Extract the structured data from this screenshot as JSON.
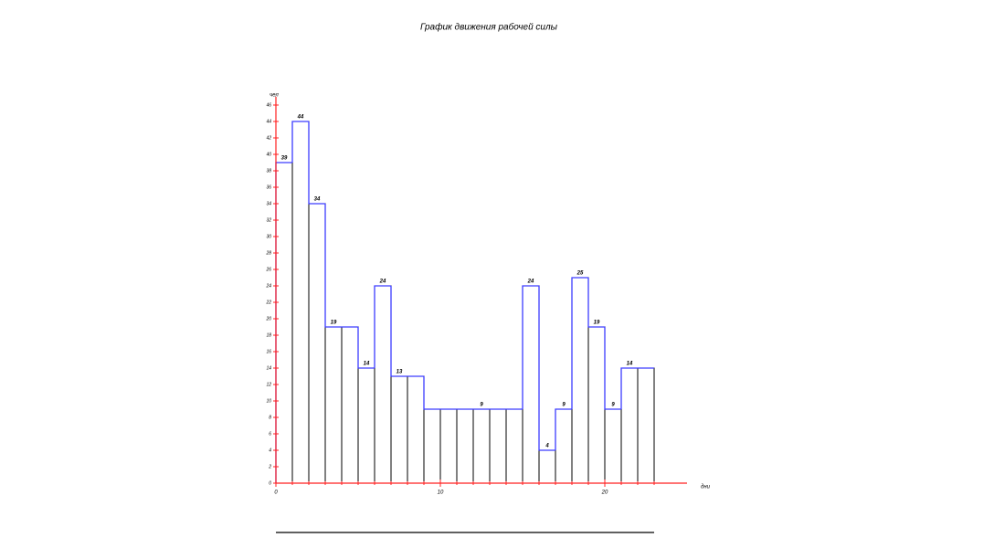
{
  "chart_data": {
    "type": "histogram",
    "title": "График движения рабочей силы",
    "ylabel": "чел",
    "xlabel": "дни",
    "bins": [
      0,
      1,
      2,
      3,
      4,
      5,
      6,
      7,
      8,
      9,
      10,
      11,
      12,
      13,
      14,
      15,
      16,
      17,
      18,
      19,
      20,
      21,
      22,
      23
    ],
    "values": [
      39,
      44,
      34,
      19,
      19,
      14,
      24,
      13,
      13,
      9,
      9,
      9,
      9,
      9,
      9,
      24,
      4,
      9,
      25,
      19,
      9,
      14,
      14
    ],
    "value_labels": [
      "39",
      "44",
      "34",
      "19",
      null,
      "14",
      "24",
      "13",
      null,
      null,
      null,
      null,
      "9",
      null,
      null,
      "24",
      "4",
      "9",
      "25",
      "19",
      "9",
      "14",
      null
    ],
    "color": "#ffffff",
    "edge_color": "#000000",
    "step_color": "#3c3cff",
    "axis_color": "#ff2020",
    "xlim": [
      0,
      25
    ],
    "ylim": [
      0,
      47
    ],
    "xticks": [
      0,
      10,
      20
    ],
    "yticks": [
      0,
      2,
      4,
      6,
      8,
      10,
      12,
      14,
      16,
      18,
      20,
      22,
      24,
      26,
      28,
      30,
      32,
      34,
      36,
      38,
      40,
      42,
      44,
      46
    ]
  }
}
